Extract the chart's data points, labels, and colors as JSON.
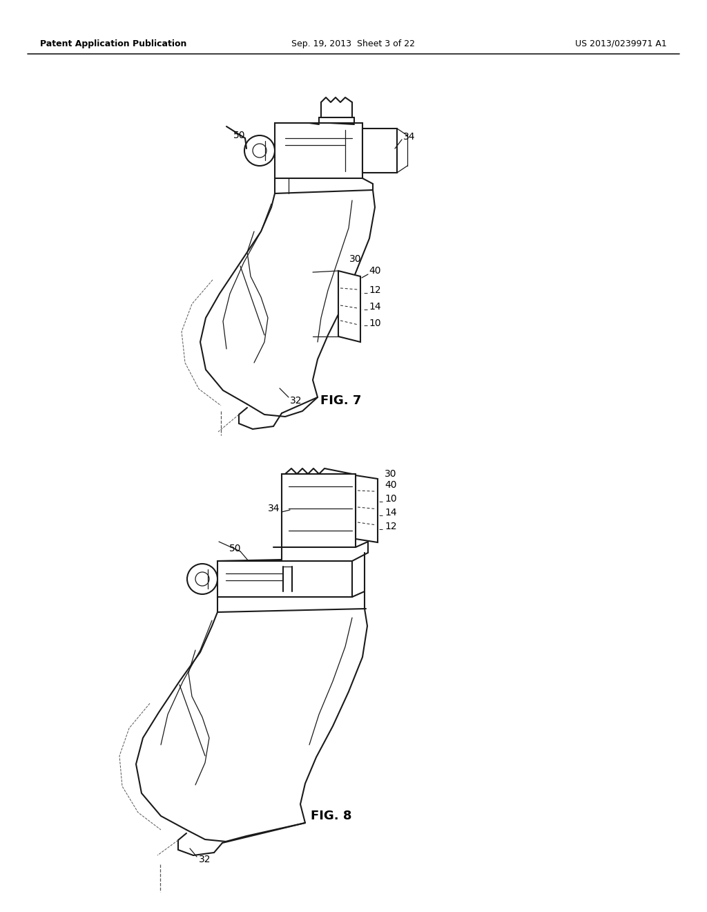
{
  "background_color": "#ffffff",
  "header_left": "Patent Application Publication",
  "header_center": "Sep. 19, 2013  Sheet 3 of 22",
  "header_right": "US 2013/0239971 A1",
  "fig7_label": "FIG. 7",
  "fig8_label": "FIG. 8",
  "text_color": "#000000",
  "line_color": "#1a1a1a",
  "lw_main": 1.5,
  "lw_thin": 0.9,
  "lw_hair": 0.7
}
